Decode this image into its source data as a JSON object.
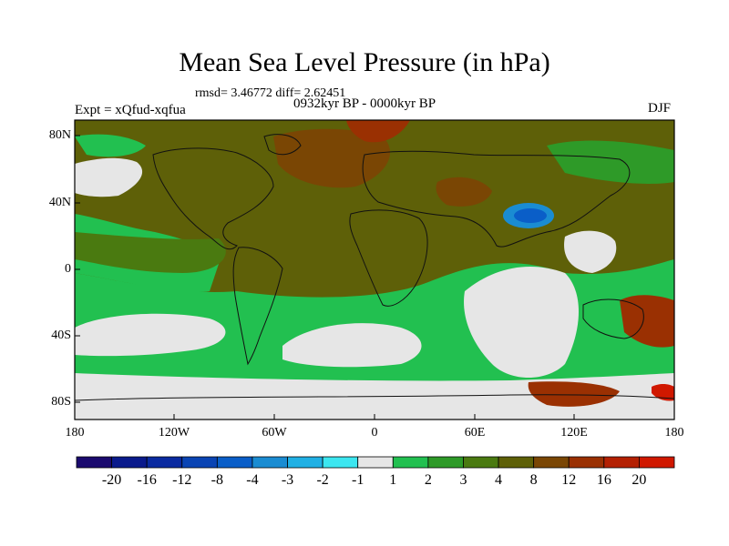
{
  "title": "Mean Sea Level Pressure (in hPa)",
  "stats": "rmsd= 3.46772 diff= 2.62451",
  "left_label": "Expt = xQfud-xqfua",
  "center_label": "0932kyr BP - 0000kyr BP",
  "right_label": "DJF",
  "lat_ticks": [
    "80N",
    "40N",
    "0",
    "40S",
    "80S"
  ],
  "lon_ticks": [
    "180",
    "120W",
    "60W",
    "0",
    "60E",
    "120E",
    "180"
  ],
  "colorbar": {
    "labels": [
      "-20",
      "-16",
      "-12",
      "-8",
      "-4",
      "-3",
      "-2",
      "-1",
      "1",
      "2",
      "3",
      "4",
      "8",
      "12",
      "16",
      "20"
    ],
    "colors": [
      "#1a0a6e",
      "#0a1a8c",
      "#0a2aa0",
      "#0a44b4",
      "#0a5ec8",
      "#1a8cd2",
      "#20b0e4",
      "#3ce6f0",
      "#e6e6e6",
      "#22c050",
      "#2e9a28",
      "#4a7a10",
      "#5e6008",
      "#7a4604",
      "#9a3002",
      "#b42002",
      "#d01800"
    ]
  },
  "palette": {
    "near_zero": "#e6e6e6",
    "green_light": "#22c050",
    "green_dark": "#2e9a28",
    "olive": "#4a7a10",
    "brown_olive": "#5e6008",
    "brown": "#7a4604",
    "red_brown": "#9a3002",
    "red": "#b42002",
    "blue": "#0a5ec8",
    "blue_light": "#1a8cd2"
  }
}
